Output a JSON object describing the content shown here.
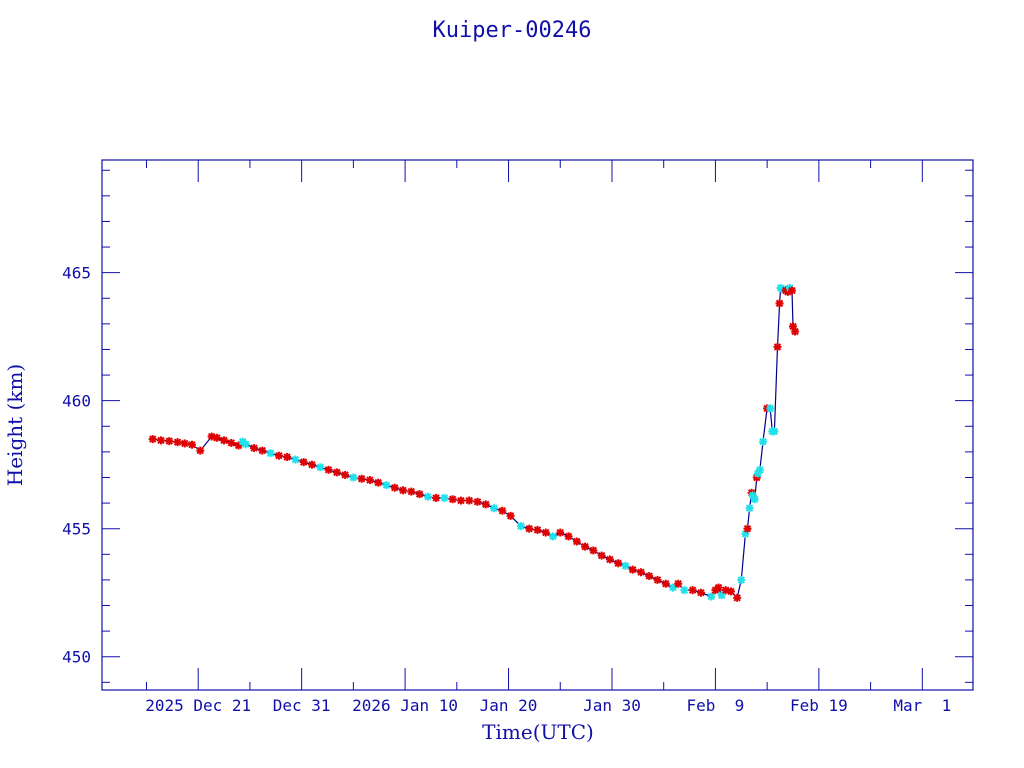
{
  "chart_data": {
    "type": "scatter",
    "title": "Kuiper-00246",
    "xlabel": "Time(UTC)",
    "ylabel": "Height (km)",
    "x_unit": "days since 2025 Dec 21",
    "xlim": [
      -9.3,
      74.9
    ],
    "ylim": [
      448.7,
      469.4
    ],
    "x_ticks": [
      {
        "value": 0,
        "label": "2025 Dec 21"
      },
      {
        "value": 10,
        "label": "Dec 31"
      },
      {
        "value": 20,
        "label": "2026 Jan 10"
      },
      {
        "value": 30,
        "label": "Jan 20"
      },
      {
        "value": 40,
        "label": "Jan 30"
      },
      {
        "value": 50,
        "label": "Feb  9"
      },
      {
        "value": 60,
        "label": "Feb 19"
      },
      {
        "value": 70,
        "label": "Mar  1"
      }
    ],
    "y_ticks": [
      {
        "value": 450,
        "label": "450"
      },
      {
        "value": 455,
        "label": "455"
      },
      {
        "value": 460,
        "label": "460"
      },
      {
        "value": 465,
        "label": "465"
      }
    ],
    "grid": false,
    "colors": {
      "axis": "#1010a8",
      "line": "#00008b",
      "r": "#e00000",
      "c": "#22e0ea"
    },
    "series_note": "r = red markers, c = cyan markers; line connects all points in order",
    "points": [
      [
        -4.4,
        458.5,
        "r"
      ],
      [
        -3.6,
        458.45,
        "r"
      ],
      [
        -2.8,
        458.42,
        "r"
      ],
      [
        -2.0,
        458.38,
        "r"
      ],
      [
        -1.3,
        458.33,
        "r"
      ],
      [
        -0.6,
        458.28,
        "r"
      ],
      [
        0.2,
        458.05,
        "r"
      ],
      [
        1.3,
        458.6,
        "r"
      ],
      [
        1.8,
        458.55,
        "r"
      ],
      [
        2.5,
        458.45,
        "r"
      ],
      [
        3.2,
        458.35,
        "r"
      ],
      [
        3.9,
        458.25,
        "r"
      ],
      [
        4.3,
        458.4,
        "c"
      ],
      [
        4.6,
        458.3,
        "c"
      ],
      [
        5.4,
        458.15,
        "r"
      ],
      [
        6.2,
        458.05,
        "r"
      ],
      [
        7.0,
        457.95,
        "c"
      ],
      [
        7.8,
        457.85,
        "r"
      ],
      [
        8.6,
        457.8,
        "r"
      ],
      [
        9.4,
        457.7,
        "c"
      ],
      [
        10.2,
        457.6,
        "r"
      ],
      [
        11.0,
        457.5,
        "r"
      ],
      [
        11.8,
        457.4,
        "c"
      ],
      [
        12.6,
        457.3,
        "r"
      ],
      [
        13.4,
        457.2,
        "r"
      ],
      [
        14.2,
        457.1,
        "r"
      ],
      [
        15.0,
        457.0,
        "c"
      ],
      [
        15.8,
        456.95,
        "r"
      ],
      [
        16.6,
        456.9,
        "r"
      ],
      [
        17.4,
        456.8,
        "r"
      ],
      [
        18.2,
        456.7,
        "c"
      ],
      [
        19.0,
        456.6,
        "r"
      ],
      [
        19.8,
        456.5,
        "r"
      ],
      [
        20.6,
        456.45,
        "r"
      ],
      [
        21.4,
        456.35,
        "r"
      ],
      [
        22.2,
        456.25,
        "c"
      ],
      [
        23.0,
        456.2,
        "r"
      ],
      [
        23.8,
        456.2,
        "c"
      ],
      [
        24.6,
        456.15,
        "r"
      ],
      [
        25.4,
        456.1,
        "r"
      ],
      [
        26.2,
        456.1,
        "r"
      ],
      [
        27.0,
        456.05,
        "r"
      ],
      [
        27.8,
        455.95,
        "r"
      ],
      [
        28.6,
        455.8,
        "c"
      ],
      [
        29.4,
        455.7,
        "r"
      ],
      [
        30.2,
        455.5,
        "r"
      ],
      [
        31.2,
        455.1,
        "c"
      ],
      [
        32.0,
        455.0,
        "r"
      ],
      [
        32.8,
        454.95,
        "r"
      ],
      [
        33.6,
        454.85,
        "r"
      ],
      [
        34.3,
        454.7,
        "c"
      ],
      [
        35.0,
        454.85,
        "r"
      ],
      [
        35.8,
        454.7,
        "r"
      ],
      [
        36.6,
        454.5,
        "r"
      ],
      [
        37.4,
        454.3,
        "r"
      ],
      [
        38.2,
        454.15,
        "r"
      ],
      [
        39.0,
        453.95,
        "r"
      ],
      [
        39.8,
        453.8,
        "r"
      ],
      [
        40.6,
        453.65,
        "r"
      ],
      [
        41.3,
        453.55,
        "c"
      ],
      [
        42.0,
        453.4,
        "r"
      ],
      [
        42.8,
        453.3,
        "r"
      ],
      [
        43.6,
        453.15,
        "r"
      ],
      [
        44.4,
        453.0,
        "r"
      ],
      [
        45.2,
        452.85,
        "r"
      ],
      [
        45.9,
        452.7,
        "c"
      ],
      [
        46.4,
        452.85,
        "r"
      ],
      [
        47.0,
        452.6,
        "c"
      ],
      [
        47.8,
        452.6,
        "r"
      ],
      [
        48.6,
        452.5,
        "r"
      ],
      [
        49.6,
        452.35,
        "c"
      ],
      [
        50.0,
        452.6,
        "r"
      ],
      [
        50.3,
        452.7,
        "r"
      ],
      [
        50.6,
        452.4,
        "c"
      ],
      [
        51.0,
        452.6,
        "r"
      ],
      [
        51.5,
        452.55,
        "r"
      ],
      [
        52.1,
        452.3,
        "r"
      ],
      [
        52.5,
        453.0,
        "c"
      ],
      [
        52.9,
        454.8,
        "c"
      ],
      [
        53.1,
        455.0,
        "r"
      ],
      [
        53.3,
        455.8,
        "c"
      ],
      [
        53.5,
        456.4,
        "r"
      ],
      [
        53.6,
        456.3,
        "c"
      ],
      [
        53.8,
        456.15,
        "c"
      ],
      [
        54.0,
        457.0,
        "r"
      ],
      [
        54.1,
        457.15,
        "c"
      ],
      [
        54.3,
        457.3,
        "c"
      ],
      [
        54.6,
        458.4,
        "c"
      ],
      [
        55.0,
        459.7,
        "r"
      ],
      [
        55.3,
        459.7,
        "c"
      ],
      [
        55.5,
        458.8,
        "c"
      ],
      [
        55.7,
        458.8,
        "c"
      ],
      [
        56.0,
        462.1,
        "r"
      ],
      [
        56.2,
        463.8,
        "r"
      ],
      [
        56.3,
        464.4,
        "c"
      ],
      [
        56.6,
        464.35,
        "c"
      ],
      [
        56.8,
        464.3,
        "r"
      ],
      [
        57.0,
        464.25,
        "r"
      ],
      [
        57.2,
        464.4,
        "c"
      ],
      [
        57.4,
        464.3,
        "r"
      ],
      [
        57.5,
        462.9,
        "r"
      ],
      [
        57.7,
        462.7,
        "r"
      ]
    ]
  }
}
